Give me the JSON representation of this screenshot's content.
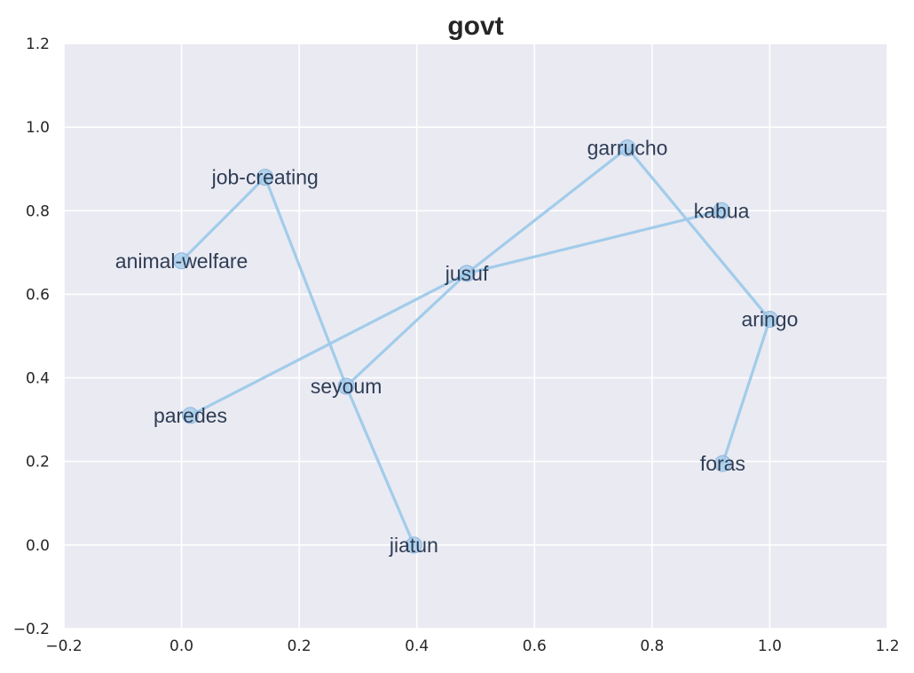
{
  "chart_data": {
    "type": "scatter",
    "title": "govt",
    "xlabel": "",
    "ylabel": "",
    "xlim": [
      -0.2,
      1.2
    ],
    "ylim": [
      -0.2,
      1.2
    ],
    "xticks": [
      "−0.2",
      "0.0",
      "0.2",
      "0.4",
      "0.6",
      "0.8",
      "1.0",
      "1.2"
    ],
    "yticks": [
      "−0.2",
      "0.0",
      "0.2",
      "0.4",
      "0.6",
      "0.8",
      "1.0",
      "1.2"
    ],
    "grid": true,
    "colors": {
      "background": "#eaeaf2",
      "grid": "#ffffff",
      "line": "#9ecae9",
      "marker": "#9ecae9",
      "marker_edge": "#8fb4dc",
      "label": "#2e3d55"
    },
    "points": [
      {
        "label": "animal-welfare",
        "x": 0.0,
        "y": 0.68
      },
      {
        "label": "job-creating",
        "x": 0.142,
        "y": 0.88
      },
      {
        "label": "seyoum",
        "x": 0.28,
        "y": 0.38
      },
      {
        "label": "jiatun",
        "x": 0.395,
        "y": 0.0
      },
      {
        "label": "paredes",
        "x": 0.015,
        "y": 0.31
      },
      {
        "label": "jusuf",
        "x": 0.485,
        "y": 0.65
      },
      {
        "label": "garrucho",
        "x": 0.758,
        "y": 0.95
      },
      {
        "label": "kabua",
        "x": 0.918,
        "y": 0.8
      },
      {
        "label": "aringo",
        "x": 1.0,
        "y": 0.54
      },
      {
        "label": "foras",
        "x": 0.92,
        "y": 0.195
      }
    ],
    "paths": [
      [
        "animal-welfare",
        "job-creating",
        "seyoum",
        "jiatun"
      ],
      [
        "paredes",
        "jusuf",
        "kabua"
      ],
      [
        "seyoum",
        "jusuf",
        "garrucho",
        "aringo",
        "foras"
      ]
    ]
  }
}
